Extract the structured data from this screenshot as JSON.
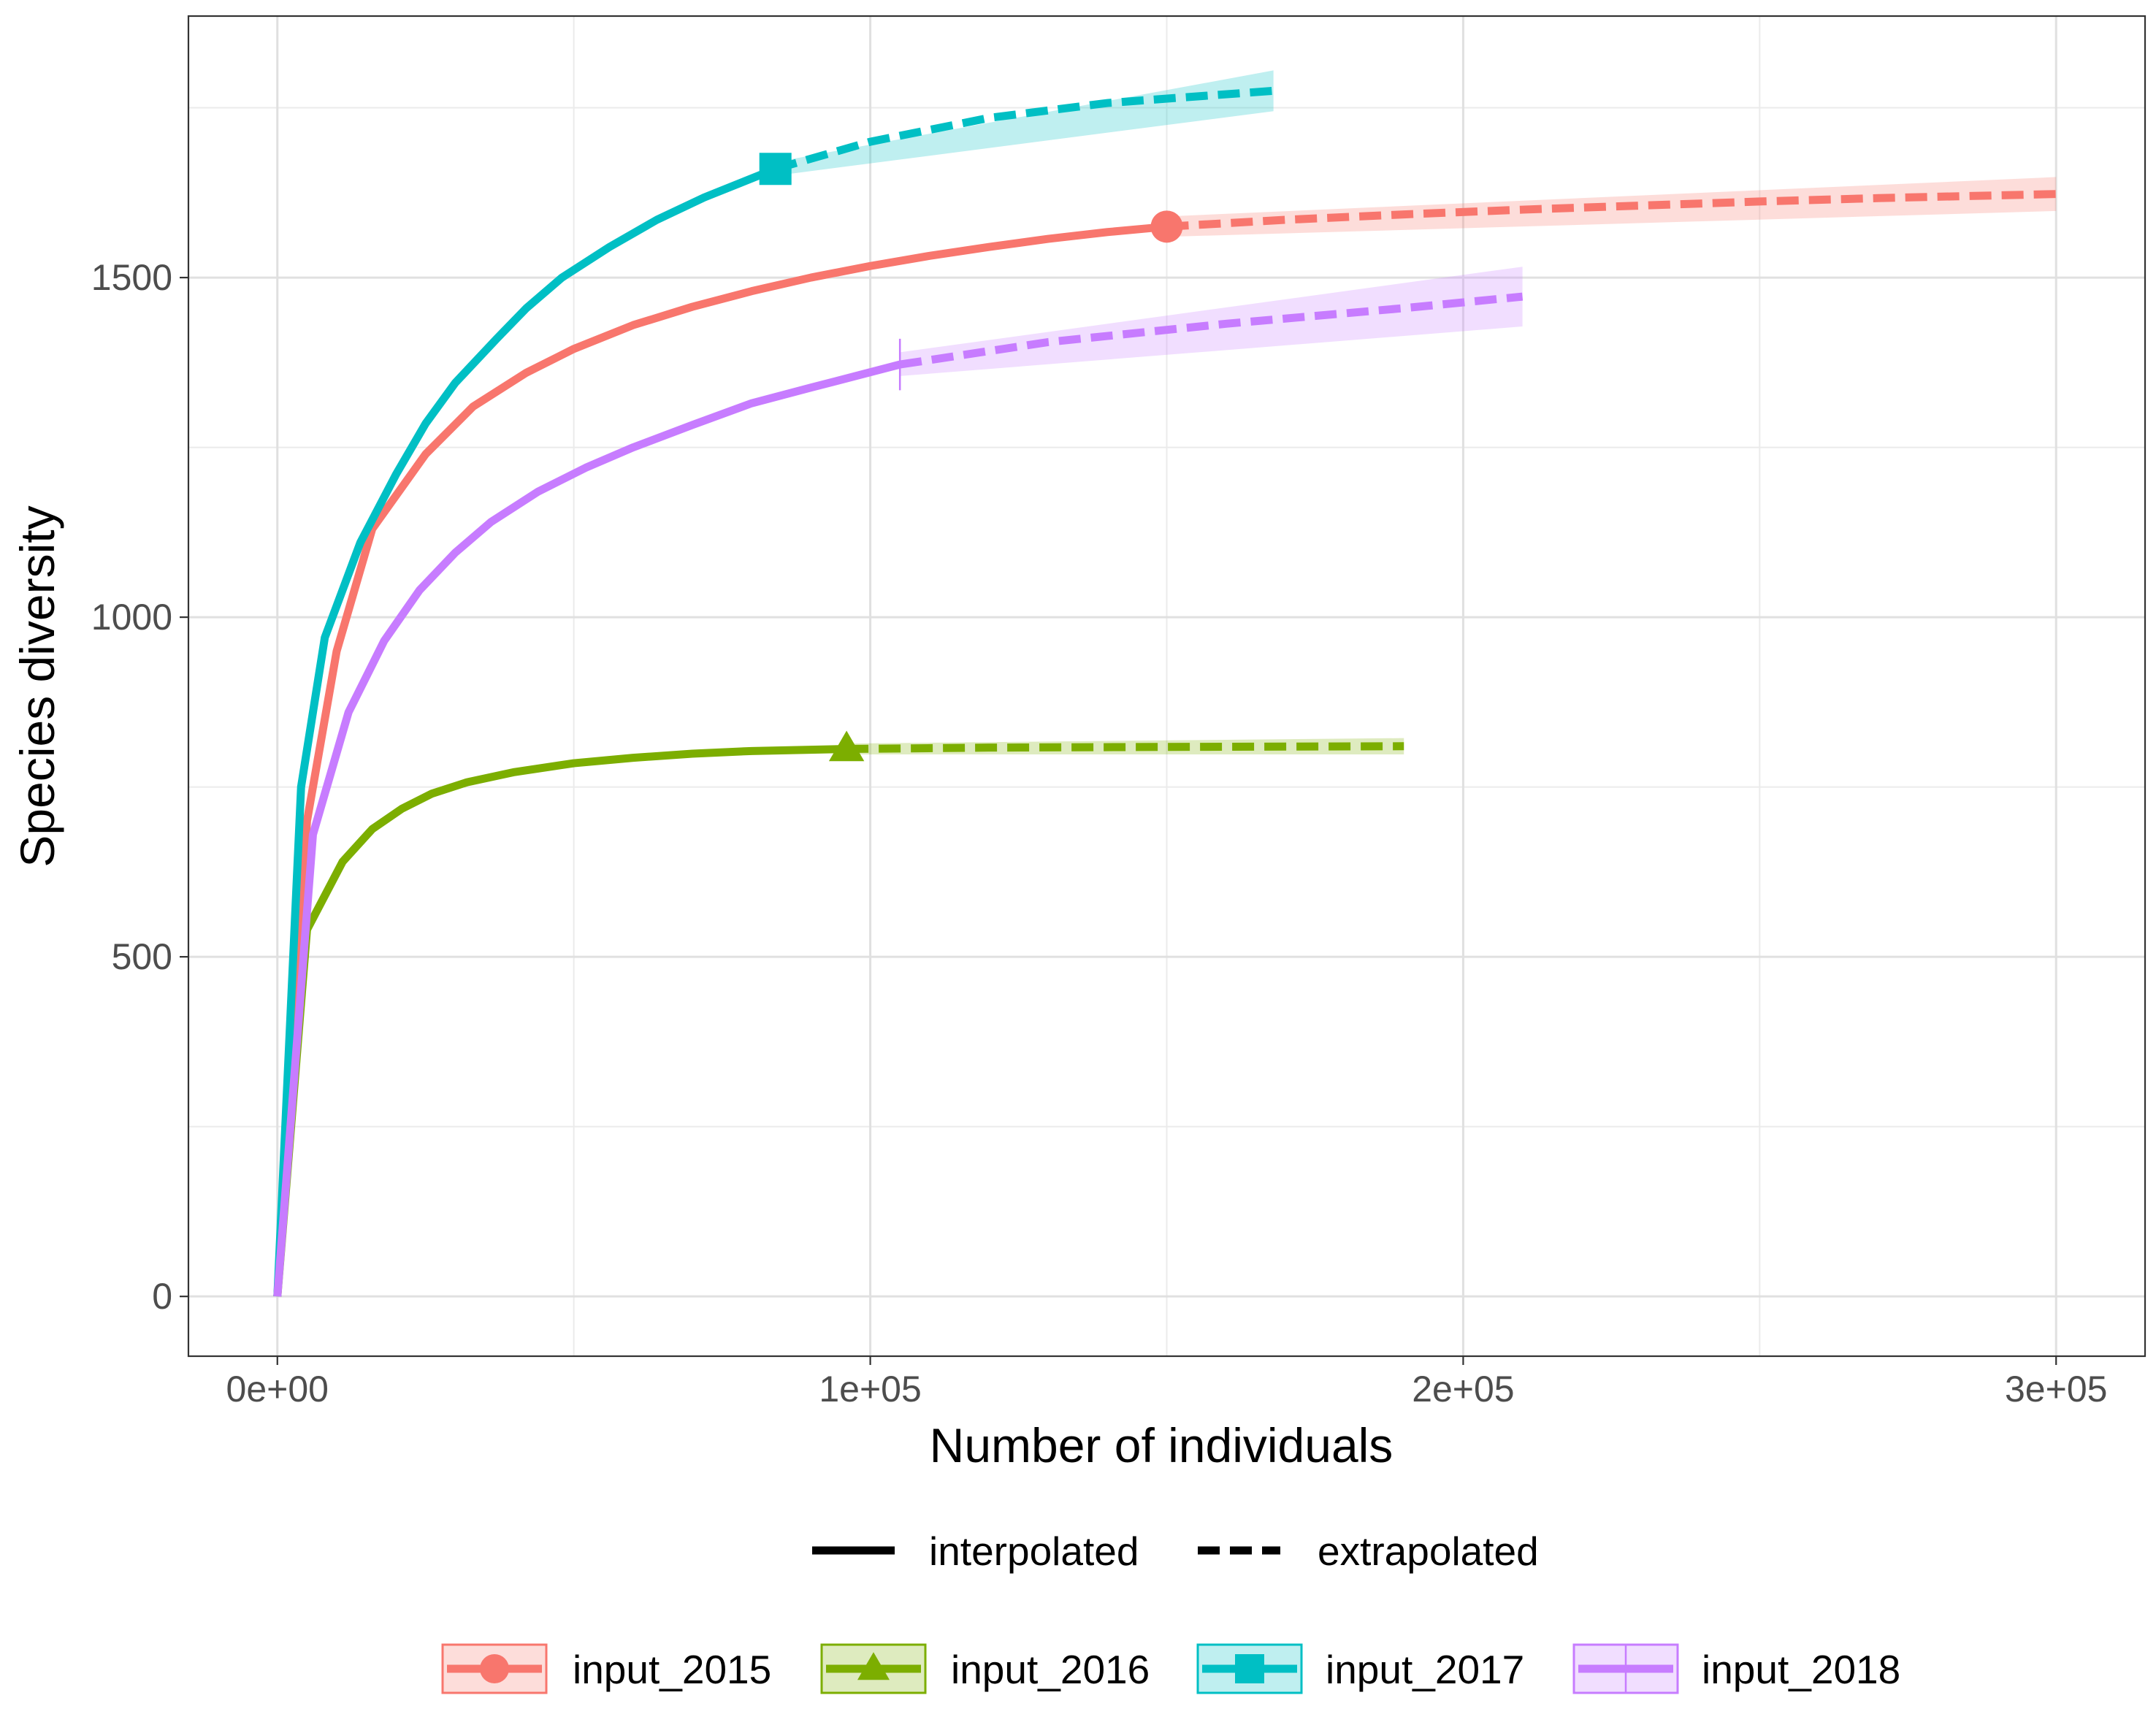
{
  "chart_data": {
    "type": "line",
    "title": "",
    "xlabel": "Number of individuals",
    "ylabel": "Species diversity",
    "xlim": [
      -15000,
      315000
    ],
    "ylim": [
      -88,
      1885
    ],
    "x_ticks": [
      0,
      100000,
      200000,
      300000
    ],
    "x_tick_labels": [
      "0e+00",
      "1e+05",
      "2e+05",
      "3e+05"
    ],
    "y_ticks": [
      0,
      500,
      1000,
      1500
    ],
    "y_tick_labels": [
      "0",
      "500",
      "1000",
      "1500"
    ],
    "grid": true,
    "legend_position": "bottom",
    "method_legend": [
      "interpolated",
      "extrapolated"
    ],
    "series": [
      {
        "name": "input_2015",
        "color": "#F8766D",
        "marker": "circle",
        "observed": [
          150000,
          1575
        ],
        "interpolated": [
          [
            0,
            0
          ],
          [
            5000,
            700
          ],
          [
            10000,
            950
          ],
          [
            16000,
            1130
          ],
          [
            25000,
            1240
          ],
          [
            33000,
            1310
          ],
          [
            42000,
            1360
          ],
          [
            50000,
            1395
          ],
          [
            60000,
            1430
          ],
          [
            70000,
            1457
          ],
          [
            80000,
            1480
          ],
          [
            90000,
            1500
          ],
          [
            100000,
            1517
          ],
          [
            110000,
            1532
          ],
          [
            120000,
            1545
          ],
          [
            130000,
            1557
          ],
          [
            140000,
            1567
          ],
          [
            150000,
            1575
          ]
        ],
        "extrapolated": [
          [
            150000,
            1575
          ],
          [
            170000,
            1585
          ],
          [
            190000,
            1593
          ],
          [
            210000,
            1600
          ],
          [
            230000,
            1606
          ],
          [
            250000,
            1612
          ],
          [
            270000,
            1617
          ],
          [
            300000,
            1623
          ]
        ],
        "band": [
          [
            150000,
            1560,
            1590
          ],
          [
            300000,
            1598,
            1648
          ]
        ]
      },
      {
        "name": "input_2016",
        "color": "#7CAE00",
        "marker": "triangle",
        "observed": [
          96000,
          806
        ],
        "interpolated": [
          [
            0,
            0
          ],
          [
            5000,
            540
          ],
          [
            11000,
            640
          ],
          [
            16000,
            688
          ],
          [
            21000,
            718
          ],
          [
            26000,
            740
          ],
          [
            32000,
            757
          ],
          [
            40000,
            772
          ],
          [
            50000,
            785
          ],
          [
            60000,
            793
          ],
          [
            70000,
            799
          ],
          [
            80000,
            803
          ],
          [
            96000,
            806
          ]
        ],
        "extrapolated": [
          [
            96000,
            806
          ],
          [
            120000,
            808
          ],
          [
            150000,
            809
          ],
          [
            190000,
            810
          ]
        ],
        "band": [
          [
            96000,
            798,
            814
          ],
          [
            190000,
            798,
            822
          ]
        ]
      },
      {
        "name": "input_2017",
        "color": "#00BFC4",
        "marker": "square",
        "observed": [
          84000,
          1660
        ],
        "interpolated": [
          [
            0,
            0
          ],
          [
            4000,
            750
          ],
          [
            8000,
            970
          ],
          [
            14000,
            1110
          ],
          [
            20000,
            1210
          ],
          [
            25000,
            1285
          ],
          [
            30000,
            1345
          ],
          [
            37000,
            1410
          ],
          [
            42000,
            1455
          ],
          [
            48000,
            1500
          ],
          [
            56000,
            1545
          ],
          [
            64000,
            1585
          ],
          [
            72000,
            1618
          ],
          [
            84000,
            1660
          ]
        ],
        "extrapolated": [
          [
            84000,
            1660
          ],
          [
            100000,
            1700
          ],
          [
            120000,
            1735
          ],
          [
            140000,
            1757
          ],
          [
            168000,
            1775
          ]
        ],
        "band": [
          [
            84000,
            1650,
            1670
          ],
          [
            168000,
            1745,
            1805
          ]
        ]
      },
      {
        "name": "input_2018",
        "color": "#C77CFF",
        "marker": "vline",
        "observed": [
          105000,
          1372
        ],
        "interpolated": [
          [
            0,
            0
          ],
          [
            6000,
            680
          ],
          [
            12000,
            860
          ],
          [
            18000,
            965
          ],
          [
            24000,
            1040
          ],
          [
            30000,
            1095
          ],
          [
            36000,
            1140
          ],
          [
            44000,
            1185
          ],
          [
            52000,
            1220
          ],
          [
            60000,
            1250
          ],
          [
            70000,
            1283
          ],
          [
            80000,
            1315
          ],
          [
            90000,
            1338
          ],
          [
            105000,
            1372
          ]
        ],
        "extrapolated": [
          [
            105000,
            1372
          ],
          [
            130000,
            1405
          ],
          [
            160000,
            1432
          ],
          [
            190000,
            1455
          ],
          [
            210000,
            1472
          ]
        ],
        "band": [
          [
            105000,
            1355,
            1390
          ],
          [
            210000,
            1428,
            1516
          ]
        ]
      }
    ]
  }
}
